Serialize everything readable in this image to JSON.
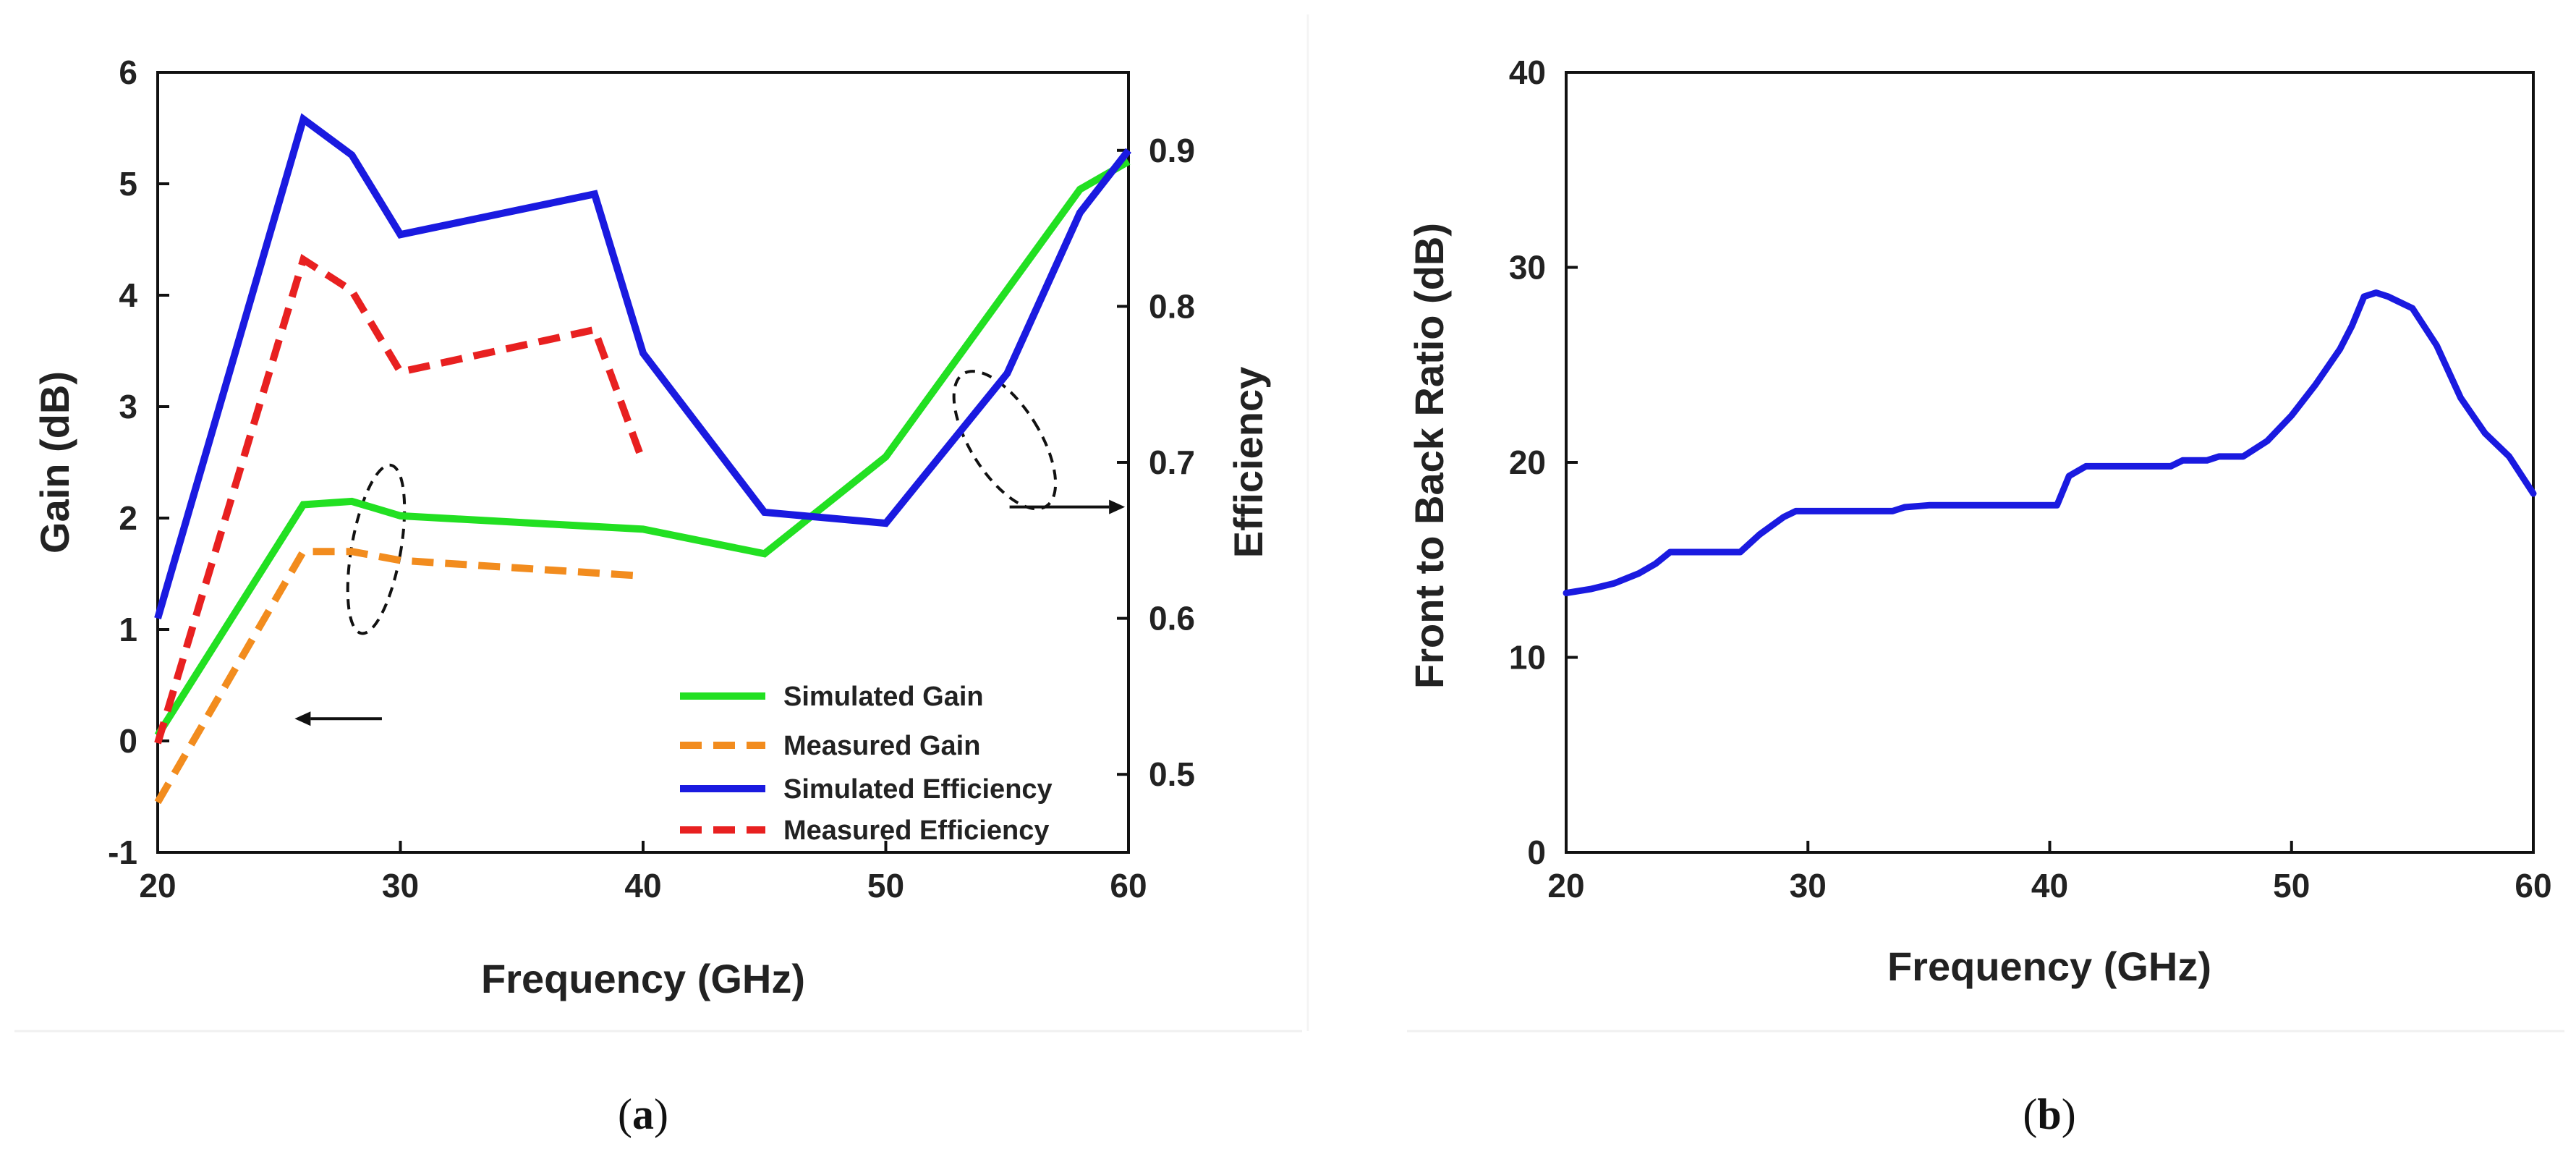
{
  "chart_data": [
    {
      "type": "line",
      "caption_prefix": "(",
      "caption_label": "a",
      "caption_suffix": ")",
      "xlabel": "Frequency (GHz)",
      "ylabel": "Gain (dB)",
      "y2label": "Efficiency",
      "xlim": [
        20,
        60
      ],
      "ylim": [
        -1,
        6
      ],
      "y2lim": [
        0.45,
        0.95
      ],
      "xticks": [
        "20",
        "30",
        "40",
        "50",
        "60"
      ],
      "yticks": [
        "-1",
        "0",
        "1",
        "2",
        "3",
        "4",
        "5",
        "6"
      ],
      "y2ticks": [
        "0.5",
        "0.6",
        "0.7",
        "0.8",
        "0.9"
      ],
      "legend_position": "bottom-right",
      "series": [
        {
          "name": "Simulated Gain",
          "axis": "left",
          "style": "solid",
          "color": "#22e022",
          "x": [
            20,
            26,
            28,
            30,
            40,
            45,
            50,
            55,
            58,
            60
          ],
          "y": [
            0.05,
            2.12,
            2.15,
            2.02,
            1.9,
            1.68,
            2.55,
            4.05,
            4.95,
            5.2
          ]
        },
        {
          "name": "Measured Gain",
          "axis": "left",
          "style": "dashed",
          "color": "#f28c1e",
          "x": [
            20,
            26,
            28,
            30,
            35,
            40
          ],
          "y": [
            -0.55,
            1.7,
            1.7,
            1.62,
            1.55,
            1.48
          ]
        },
        {
          "name": "Simulated Efficiency",
          "axis": "right",
          "style": "solid",
          "color": "#1a1ae0",
          "x": [
            20,
            26,
            28,
            30,
            38,
            40,
            45,
            50,
            55,
            58,
            60
          ],
          "y": [
            0.6,
            0.92,
            0.897,
            0.846,
            0.872,
            0.77,
            0.668,
            0.661,
            0.757,
            0.86,
            0.9
          ]
        },
        {
          "name": "Measured Efficiency",
          "axis": "right",
          "style": "dashed",
          "color": "#e82020",
          "x": [
            20,
            26,
            28,
            30,
            38,
            40
          ],
          "y": [
            0.52,
            0.83,
            0.81,
            0.758,
            0.785,
            0.7
          ]
        }
      ],
      "annotations": [
        {
          "type": "ellipse-arrow",
          "points_to": "left axis",
          "near_x": 29
        },
        {
          "type": "ellipse-arrow",
          "points_to": "right axis",
          "near_x": 55
        }
      ]
    },
    {
      "type": "line",
      "caption_prefix": "(",
      "caption_label": "b",
      "caption_suffix": ")",
      "xlabel": "Frequency (GHz)",
      "ylabel": "Front to Back Ratio (dB)",
      "xlim": [
        20,
        60
      ],
      "ylim": [
        0,
        40
      ],
      "xticks": [
        "20",
        "30",
        "40",
        "50",
        "60"
      ],
      "yticks": [
        "0",
        "10",
        "20",
        "30",
        "40"
      ],
      "series": [
        {
          "name": "Front to Back Ratio",
          "style": "solid",
          "color": "#1a1ae0",
          "x": [
            20,
            21,
            22,
            23,
            23.7,
            24.3,
            25,
            26,
            27,
            27.2,
            28,
            29,
            29.5,
            30,
            32,
            33.5,
            34,
            35,
            37,
            39,
            40,
            40.3,
            40.8,
            41.5,
            42,
            43,
            44,
            45,
            45.5,
            46.5,
            47,
            48,
            49,
            50,
            51,
            52,
            52.5,
            53,
            53.5,
            54,
            55,
            56,
            57,
            58,
            59,
            60
          ],
          "y": [
            13.3,
            13.5,
            13.8,
            14.3,
            14.8,
            15.4,
            15.4,
            15.4,
            15.4,
            15.4,
            16.3,
            17.2,
            17.5,
            17.5,
            17.5,
            17.5,
            17.7,
            17.8,
            17.8,
            17.8,
            17.8,
            17.8,
            19.3,
            19.8,
            19.8,
            19.8,
            19.8,
            19.8,
            20.1,
            20.1,
            20.3,
            20.3,
            21.1,
            22.4,
            24.0,
            25.8,
            27.0,
            28.5,
            28.7,
            28.5,
            27.9,
            26.0,
            23.3,
            21.5,
            20.3,
            18.4
          ]
        }
      ]
    }
  ]
}
